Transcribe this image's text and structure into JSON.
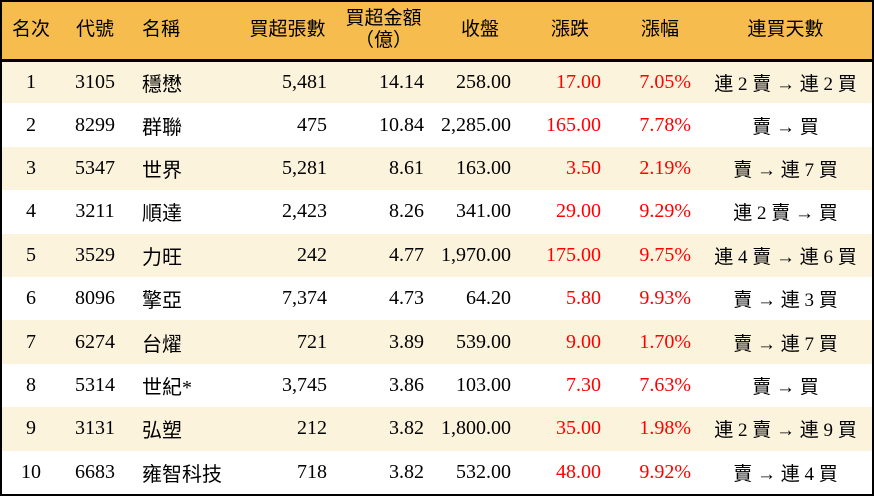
{
  "chart_data": {
    "type": "table",
    "title": "",
    "columns": [
      "名次",
      "代號",
      "名稱",
      "買超張數",
      "買超金額（億）",
      "收盤",
      "漲跌",
      "漲幅",
      "連買天數"
    ],
    "rows": [
      [
        "1",
        "3105",
        "穩懋",
        "5,481",
        "14.14",
        "258.00",
        "17.00",
        "7.05%",
        "連 2 賣 → 連 2 買"
      ],
      [
        "2",
        "8299",
        "群聯",
        "475",
        "10.84",
        "2,285.00",
        "165.00",
        "7.78%",
        "賣 → 買"
      ],
      [
        "3",
        "5347",
        "世界",
        "5,281",
        "8.61",
        "163.00",
        "3.50",
        "2.19%",
        "賣 → 連 7 買"
      ],
      [
        "4",
        "3211",
        "順達",
        "2,423",
        "8.26",
        "341.00",
        "29.00",
        "9.29%",
        "連 2 賣 → 買"
      ],
      [
        "5",
        "3529",
        "力旺",
        "242",
        "4.77",
        "1,970.00",
        "175.00",
        "9.75%",
        "連 4 賣 → 連 6 買"
      ],
      [
        "6",
        "8096",
        "擎亞",
        "7,374",
        "4.73",
        "64.20",
        "5.80",
        "9.93%",
        "賣 → 連 3 買"
      ],
      [
        "7",
        "6274",
        "台燿",
        "721",
        "3.89",
        "539.00",
        "9.00",
        "1.70%",
        "賣 → 連 7 買"
      ],
      [
        "8",
        "5314",
        "世紀*",
        "3,745",
        "3.86",
        "103.00",
        "7.30",
        "7.63%",
        "賣 → 買"
      ],
      [
        "9",
        "3131",
        "弘塑",
        "212",
        "3.82",
        "1,800.00",
        "35.00",
        "1.98%",
        "連 2 賣 → 連 9 買"
      ],
      [
        "10",
        "6683",
        "雍智科技",
        "718",
        "3.82",
        "532.00",
        "48.00",
        "9.92%",
        "賣 → 連 4 買"
      ]
    ],
    "layout_hints": {
      "striped_rows": "odd rows cream, even rows white",
      "up_color_meaning": "red = price gain (Taiwan convention)"
    }
  },
  "header": {
    "rank": "名次",
    "code": "代號",
    "name": "名稱",
    "volume": "買超張數",
    "amount_line1": "買超金額",
    "amount_line2": "（億）",
    "close": "收盤",
    "change": "漲跌",
    "change_pct": "漲幅",
    "streak": "連買天數"
  },
  "colors": {
    "header_bg": "#F6BC4E",
    "stripe_bg": "#FCF3DC",
    "row_bg": "#FFFFFF",
    "up_red": "#FF0000",
    "text": "#000000",
    "border": "#000000"
  }
}
